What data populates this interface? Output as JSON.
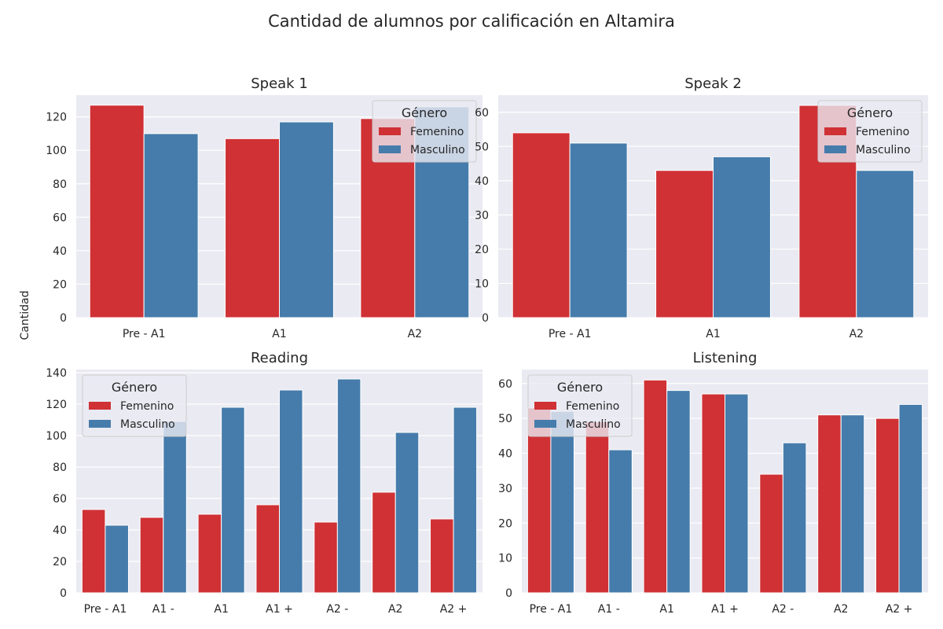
{
  "figure": {
    "title": "Cantidad de alumnos por calificación en Altamira",
    "ylabel": "Cantidad"
  },
  "colors": {
    "femenino": "#CF3135",
    "masculino": "#467CAB",
    "plot_bg": "#EAEAF2",
    "grid": "#FFFFFF"
  },
  "legend": {
    "title": "Género"
  },
  "chart_data": [
    {
      "type": "bar",
      "title": "Speak 1",
      "categories": [
        "Pre - A1",
        "A1",
        "A2"
      ],
      "series": [
        {
          "name": "Femenino",
          "values": [
            127,
            107,
            119
          ]
        },
        {
          "name": "Masculino",
          "values": [
            110,
            117,
            126
          ]
        }
      ],
      "ylim": [
        0,
        133
      ],
      "yticks": [
        0,
        20,
        40,
        60,
        80,
        100,
        120
      ],
      "grid": true,
      "legend_position": "upper right"
    },
    {
      "type": "bar",
      "title": "Speak 2",
      "categories": [
        "Pre - A1",
        "A1",
        "A2"
      ],
      "series": [
        {
          "name": "Femenino",
          "values": [
            54,
            43,
            62
          ]
        },
        {
          "name": "Masculino",
          "values": [
            51,
            47,
            43
          ]
        }
      ],
      "ylim": [
        0,
        65
      ],
      "yticks": [
        0,
        10,
        20,
        30,
        40,
        50,
        60
      ],
      "grid": true,
      "legend_position": "upper right"
    },
    {
      "type": "bar",
      "title": "Reading",
      "categories": [
        "Pre - A1",
        "A1 -",
        "A1",
        "A1 +",
        "A2 -",
        "A2",
        "A2 +"
      ],
      "series": [
        {
          "name": "Femenino",
          "values": [
            53,
            48,
            50,
            56,
            45,
            64,
            47
          ]
        },
        {
          "name": "Masculino",
          "values": [
            43,
            109,
            118,
            129,
            136,
            102,
            118
          ]
        }
      ],
      "ylim": [
        0,
        142
      ],
      "yticks": [
        0,
        20,
        40,
        60,
        80,
        100,
        120,
        140
      ],
      "grid": true,
      "legend_position": "upper left"
    },
    {
      "type": "bar",
      "title": "Listening",
      "categories": [
        "Pre - A1",
        "A1 -",
        "A1",
        "A1 +",
        "A2 -",
        "A2",
        "A2 +"
      ],
      "series": [
        {
          "name": "Femenino",
          "values": [
            53,
            49,
            61,
            57,
            34,
            51,
            50
          ]
        },
        {
          "name": "Masculino",
          "values": [
            52,
            41,
            58,
            57,
            43,
            51,
            54
          ]
        }
      ],
      "ylim": [
        0,
        64
      ],
      "yticks": [
        0,
        10,
        20,
        30,
        40,
        50,
        60
      ],
      "grid": true,
      "legend_position": "upper left"
    }
  ]
}
